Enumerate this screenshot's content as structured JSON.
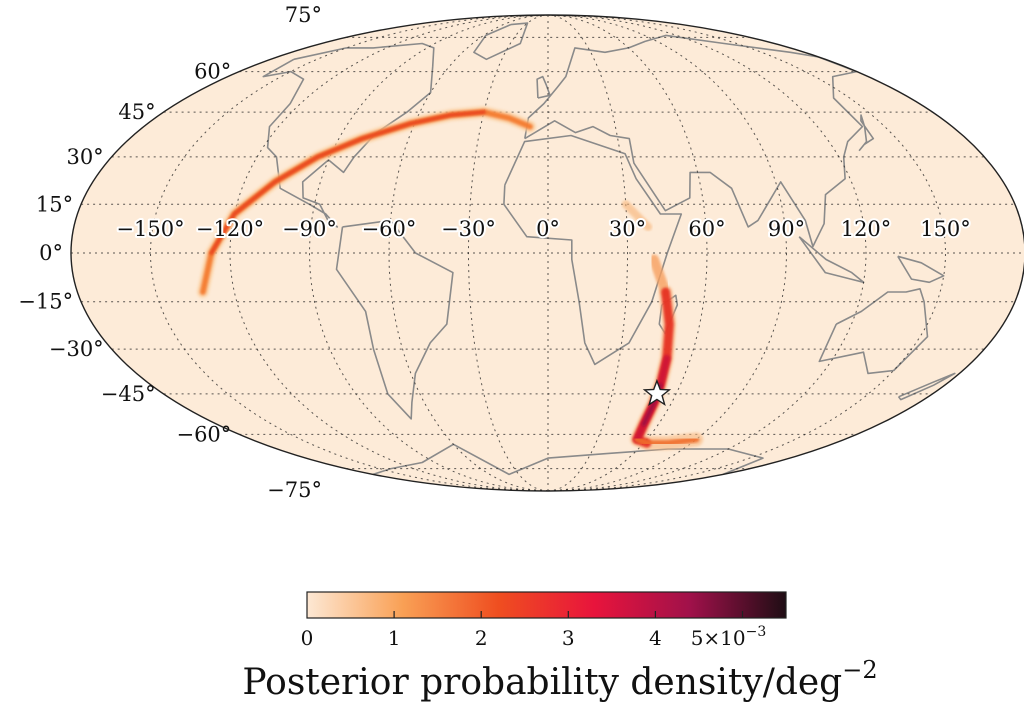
{
  "map": {
    "projection": "mollweide",
    "background_color": "#fdebd8",
    "graticule": "dotted",
    "lat_labels": [
      {
        "value": 75,
        "text": "75°"
      },
      {
        "value": 60,
        "text": "60°"
      },
      {
        "value": 45,
        "text": "45°"
      },
      {
        "value": 30,
        "text": "30°"
      },
      {
        "value": 15,
        "text": "15°"
      },
      {
        "value": 0,
        "text": "0°"
      },
      {
        "value": -15,
        "text": "−15°"
      },
      {
        "value": -30,
        "text": "−30°"
      },
      {
        "value": -45,
        "text": "−45°"
      },
      {
        "value": -60,
        "text": "−60°"
      },
      {
        "value": -75,
        "text": "−75°"
      }
    ],
    "lon_labels": [
      {
        "value": -150,
        "text": "−150°"
      },
      {
        "value": -120,
        "text": "−120°"
      },
      {
        "value": -90,
        "text": "−90°"
      },
      {
        "value": -60,
        "text": "−60°"
      },
      {
        "value": -30,
        "text": "−30°"
      },
      {
        "value": 0,
        "text": "0°"
      },
      {
        "value": 30,
        "text": "30°"
      },
      {
        "value": 60,
        "text": "60°"
      },
      {
        "value": 90,
        "text": "90°"
      },
      {
        "value": 120,
        "text": "120°"
      },
      {
        "value": 150,
        "text": "150°"
      }
    ],
    "posterior_arc": {
      "description_color": "#e8461f",
      "points_lonlat": [
        [
          -132,
          -12
        ],
        [
          -127,
          0
        ],
        [
          -120,
          12
        ],
        [
          -108,
          22
        ],
        [
          -95,
          30
        ],
        [
          -80,
          36
        ],
        [
          -62,
          41
        ],
        [
          -45,
          44
        ],
        [
          -30,
          45
        ],
        [
          -18,
          43
        ],
        [
          -8,
          40
        ]
      ],
      "faint_points_lonlat": [
        [
          30,
          15
        ],
        [
          38,
          8
        ]
      ]
    },
    "posterior_southern": {
      "points_lonlat": [
        [
          40,
          -2
        ],
        [
          45,
          -12
        ],
        [
          48,
          -22
        ],
        [
          50,
          -33
        ],
        [
          51,
          -42
        ],
        [
          51.5,
          -48
        ],
        [
          52,
          -56
        ],
        [
          54,
          -62
        ],
        [
          62,
          -63.5
        ],
        [
          75,
          -63.5
        ],
        [
          90,
          -62
        ]
      ]
    },
    "marker": {
      "lon": 51,
      "lat": -45,
      "icon": "star-icon",
      "color": "#ffffff"
    }
  },
  "colorbar": {
    "title": "Posterior probability density/deg",
    "title_exponent": "−2",
    "min": 0,
    "max": 5.5,
    "stops": [
      "#fde8d4",
      "#f9a055",
      "#ef4e20",
      "#e8143c",
      "#a0114a",
      "#1f0d14"
    ],
    "tick_values": [
      0,
      1,
      2,
      3,
      4,
      5
    ],
    "tick_labels": [
      "0",
      "1",
      "2",
      "3",
      "4",
      "5×10"
    ],
    "tick_exponent": "−3"
  }
}
